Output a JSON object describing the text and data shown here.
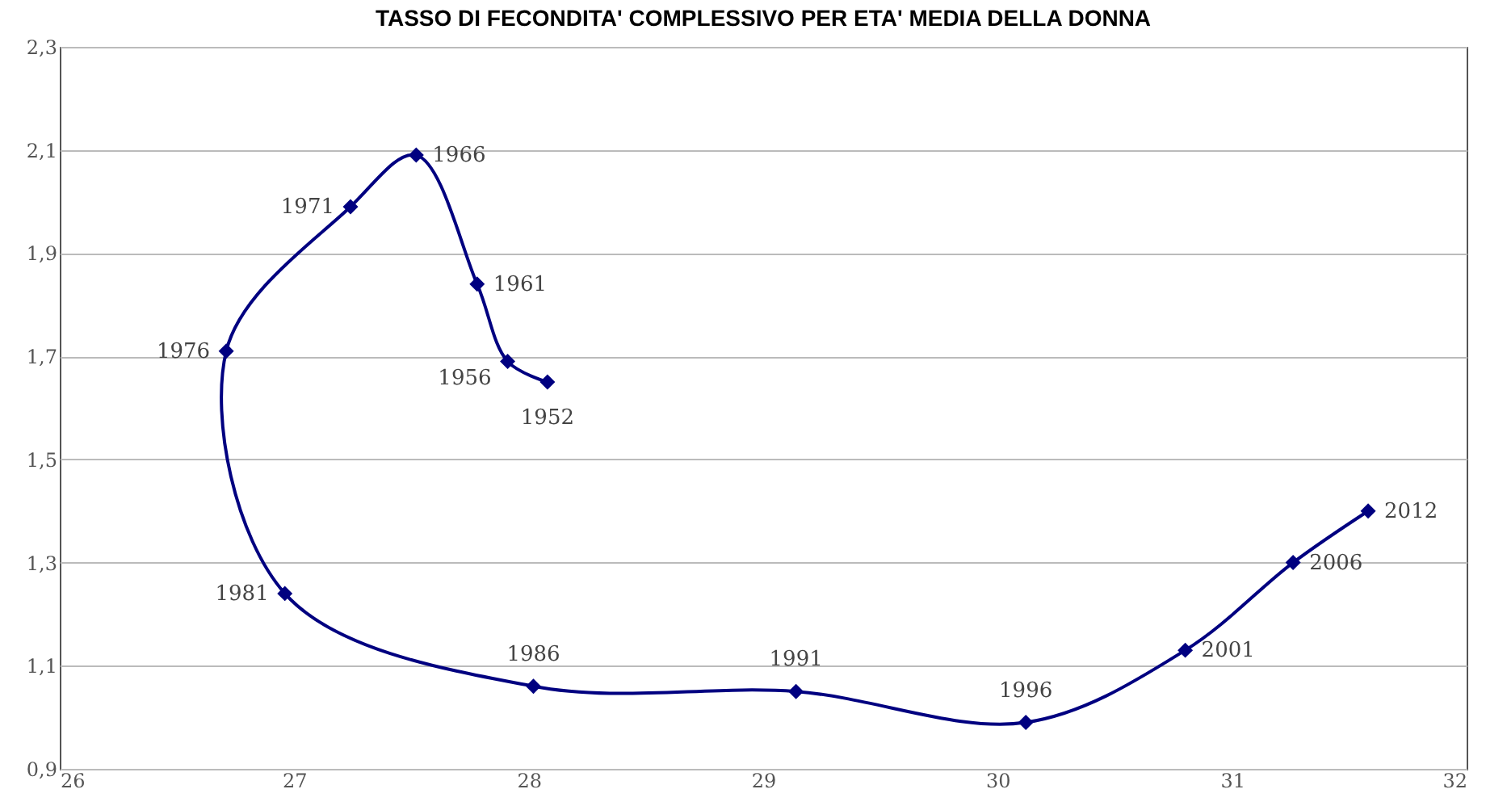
{
  "chart_data": {
    "type": "line",
    "title": "TASSO DI FECONDITA' COMPLESSIVO PER ETA' MEDIA DELLA DONNA",
    "x": [
      28.08,
      27.91,
      27.78,
      27.52,
      27.24,
      26.71,
      26.96,
      28.02,
      29.14,
      30.12,
      30.8,
      31.26,
      31.58
    ],
    "series": [
      {
        "color": "#000080",
        "values": [
          1.65,
          1.69,
          1.84,
          2.09,
          1.99,
          1.71,
          1.24,
          1.06,
          1.05,
          0.99,
          1.13,
          1.3,
          1.4
        ]
      }
    ],
    "annotations": [
      {
        "text": "1952",
        "x": 28.08,
        "y": 1.65
      },
      {
        "text": "1956",
        "x": 27.91,
        "y": 1.69
      },
      {
        "text": "1961",
        "x": 27.78,
        "y": 1.84
      },
      {
        "text": "1966",
        "x": 27.52,
        "y": 2.09
      },
      {
        "text": "1971",
        "x": 27.24,
        "y": 1.99
      },
      {
        "text": "1976",
        "x": 26.71,
        "y": 1.71
      },
      {
        "text": "1981",
        "x": 26.96,
        "y": 1.24
      },
      {
        "text": "1986",
        "x": 28.02,
        "y": 1.06
      },
      {
        "text": "1991",
        "x": 29.14,
        "y": 1.05
      },
      {
        "text": "1996",
        "x": 30.12,
        "y": 0.99
      },
      {
        "text": "2001",
        "x": 30.8,
        "y": 1.13
      },
      {
        "text": "2006",
        "x": 31.26,
        "y": 1.3
      },
      {
        "text": "2012",
        "x": 31.58,
        "y": 1.4
      }
    ],
    "xlim": [
      26,
      32
    ],
    "xticks": [
      26,
      27,
      28,
      29,
      30,
      31,
      32
    ],
    "ylim": [
      0.9,
      2.3
    ],
    "yticks": [
      {
        "value": 0.9,
        "label": "0,9"
      },
      {
        "value": 1.1,
        "label": "1,1"
      },
      {
        "value": 1.3,
        "label": "1,3"
      },
      {
        "value": 1.5,
        "label": "1,5"
      },
      {
        "value": 1.7,
        "label": "1,7"
      },
      {
        "value": 1.9,
        "label": "1,9"
      },
      {
        "value": 2.1,
        "label": "2,1"
      },
      {
        "value": 2.3,
        "label": "2,3"
      }
    ],
    "grid": "y",
    "marker": "diamond",
    "line_style": "solid"
  }
}
